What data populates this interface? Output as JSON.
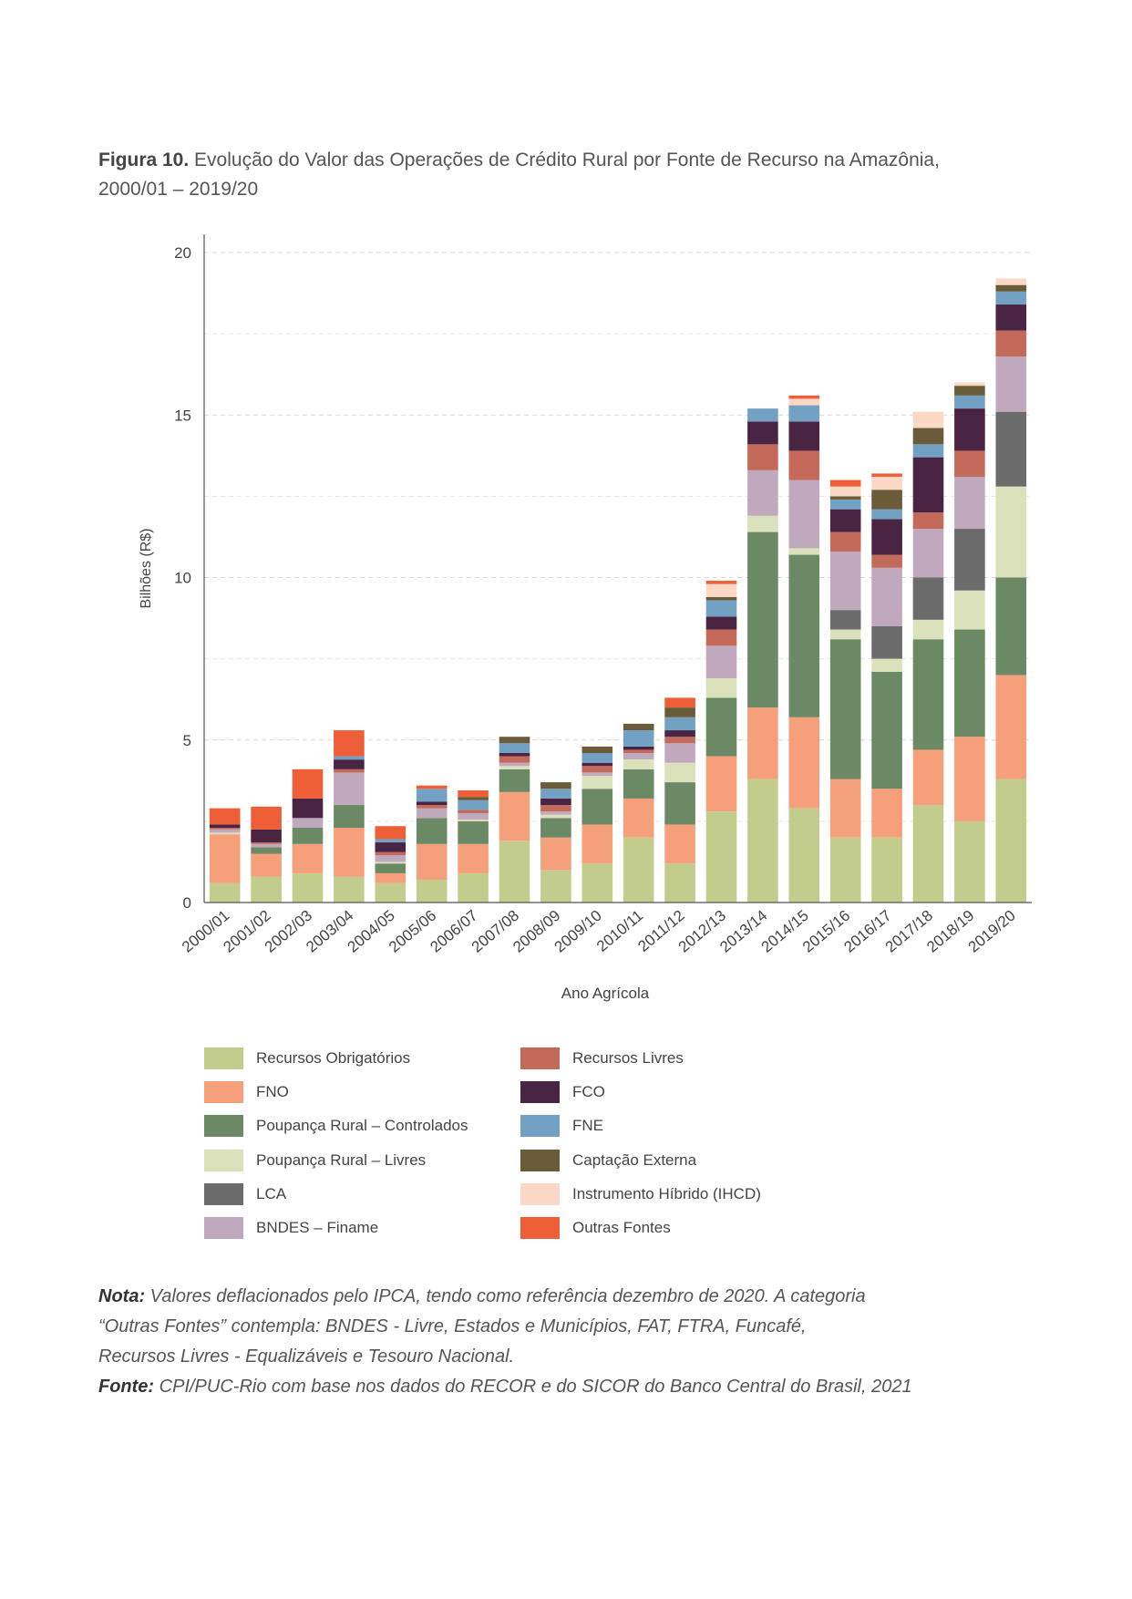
{
  "figure": {
    "label": "Figura 10.",
    "title": "Evolução do Valor das Operações de Crédito Rural por Fonte de Recurso na Amazônia, 2000/01 – 2019/20"
  },
  "notes": {
    "nota_label": "Nota:",
    "nota_text_1": "Valores deflacionados pelo IPCA, tendo como referência dezembro de 2020. A categoria",
    "nota_text_2": "“Outras Fontes” contempla: BNDES - Livre, Estados e Municípios, FAT, FTRA, Funcafé,",
    "nota_text_3": "Recursos Livres - Equalizáveis e Tesouro Nacional.",
    "fonte_label": "Fonte:",
    "fonte_text": "CPI/PUC-Rio com base nos dados do RECOR e do SICOR do Banco Central do Brasil, 2021"
  },
  "chart_data": {
    "type": "bar",
    "stacked": true,
    "xlabel": "Ano Agrícola",
    "ylabel": "Bilhões (R$)",
    "ylim": [
      0,
      20
    ],
    "yticks": [
      0,
      5,
      10,
      15,
      20
    ],
    "grid": "horizontal-dashed",
    "legend_position": "bottom",
    "categories": [
      "2000/01",
      "2001/02",
      "2002/03",
      "2003/04",
      "2004/05",
      "2005/06",
      "2006/07",
      "2007/08",
      "2008/09",
      "2009/10",
      "2010/11",
      "2011/12",
      "2012/13",
      "2013/14",
      "2014/15",
      "2015/16",
      "2016/17",
      "2017/18",
      "2018/19",
      "2019/20"
    ],
    "series": [
      {
        "name": "Recursos Obrigatórios",
        "color": "#c2cd8d",
        "values": [
          0.6,
          0.8,
          0.9,
          0.8,
          0.6,
          0.7,
          0.9,
          1.9,
          1.0,
          1.2,
          2.0,
          1.2,
          2.8,
          3.8,
          2.9,
          2.0,
          2.0,
          3.0,
          2.5,
          3.8
        ]
      },
      {
        "name": "FNO",
        "color": "#f6a07b",
        "values": [
          1.5,
          0.7,
          0.9,
          1.5,
          0.3,
          1.1,
          0.9,
          1.5,
          1.0,
          1.2,
          1.2,
          1.2,
          1.7,
          2.2,
          2.8,
          1.8,
          1.5,
          1.7,
          2.6,
          3.2
        ]
      },
      {
        "name": "Poupança Rural – Controlados",
        "color": "#6b8964",
        "values": [
          0.0,
          0.2,
          0.5,
          0.7,
          0.3,
          0.8,
          0.7,
          0.7,
          0.6,
          1.1,
          0.9,
          1.3,
          1.8,
          5.4,
          5.0,
          4.3,
          3.6,
          3.4,
          3.3,
          3.0
        ]
      },
      {
        "name": "Poupança Rural – Livres",
        "color": "#dbe2bb",
        "values": [
          0.05,
          0.0,
          0.0,
          0.0,
          0.05,
          0.0,
          0.05,
          0.1,
          0.1,
          0.4,
          0.3,
          0.6,
          0.6,
          0.5,
          0.2,
          0.3,
          0.4,
          0.6,
          1.2,
          2.8
        ]
      },
      {
        "name": "LCA",
        "color": "#6c6c6c",
        "values": [
          0.0,
          0.0,
          0.0,
          0.0,
          0.0,
          0.0,
          0.0,
          0.0,
          0.0,
          0.0,
          0.0,
          0.0,
          0.0,
          0.0,
          0.0,
          0.6,
          1.0,
          1.3,
          1.9,
          2.3
        ]
      },
      {
        "name": "BNDES – Finame",
        "color": "#c1a9bd",
        "values": [
          0.1,
          0.1,
          0.3,
          1.0,
          0.2,
          0.3,
          0.2,
          0.1,
          0.1,
          0.1,
          0.2,
          0.6,
          1.0,
          1.4,
          2.1,
          1.8,
          1.8,
          1.5,
          1.6,
          1.7
        ]
      },
      {
        "name": "Recursos Livres",
        "color": "#c46a5a",
        "values": [
          0.05,
          0.05,
          0.0,
          0.1,
          0.1,
          0.1,
          0.1,
          0.2,
          0.2,
          0.2,
          0.1,
          0.2,
          0.5,
          0.8,
          0.9,
          0.6,
          0.4,
          0.5,
          0.8,
          0.8
        ]
      },
      {
        "name": "FCO",
        "color": "#4a2443",
        "values": [
          0.1,
          0.4,
          0.6,
          0.3,
          0.3,
          0.1,
          0.0,
          0.1,
          0.2,
          0.1,
          0.1,
          0.2,
          0.4,
          0.7,
          0.9,
          0.7,
          1.1,
          1.7,
          1.3,
          0.8
        ]
      },
      {
        "name": "FNE",
        "color": "#72a1c3",
        "values": [
          0.0,
          0.0,
          0.0,
          0.1,
          0.1,
          0.4,
          0.3,
          0.3,
          0.3,
          0.3,
          0.5,
          0.4,
          0.5,
          0.4,
          0.5,
          0.3,
          0.3,
          0.4,
          0.4,
          0.4
        ]
      },
      {
        "name": "Captação Externa",
        "color": "#6a5b39",
        "values": [
          0.0,
          0.0,
          0.0,
          0.0,
          0.0,
          0.0,
          0.1,
          0.2,
          0.2,
          0.2,
          0.2,
          0.3,
          0.1,
          0.0,
          0.0,
          0.1,
          0.6,
          0.5,
          0.3,
          0.2
        ]
      },
      {
        "name": "Instrumento Híbrido (IHCD)",
        "color": "#fbd9c6",
        "values": [
          0.0,
          0.0,
          0.0,
          0.0,
          0.0,
          0.0,
          0.0,
          0.0,
          0.0,
          0.0,
          0.0,
          0.0,
          0.4,
          0.0,
          0.2,
          0.3,
          0.4,
          0.5,
          0.1,
          0.2
        ]
      },
      {
        "name": "Outras Fontes",
        "color": "#ef5f37",
        "values": [
          0.5,
          0.7,
          0.9,
          0.8,
          0.4,
          0.1,
          0.2,
          0.0,
          0.0,
          0.0,
          0.0,
          0.3,
          0.1,
          0.0,
          0.1,
          0.2,
          0.1,
          0.0,
          0.0,
          0.0
        ]
      }
    ]
  },
  "legend": {
    "left": [
      "Recursos Obrigatórios",
      "FNO",
      "Poupança Rural – Controlados",
      "Poupança Rural – Livres",
      "LCA",
      "BNDES – Finame"
    ],
    "right": [
      "Recursos Livres",
      "FCO",
      "FNE",
      "Captação Externa",
      "Instrumento Híbrido (IHCD)",
      "Outras Fontes"
    ]
  }
}
